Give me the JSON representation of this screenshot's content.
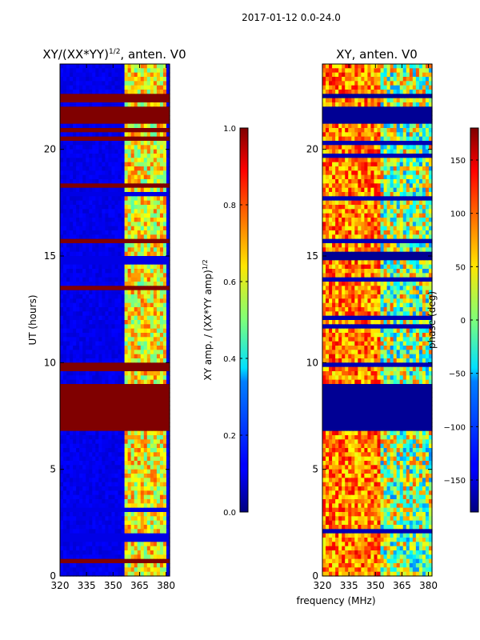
{
  "figure": {
    "suptitle": "2017-01-12 0.0-24.0",
    "xlabel": "frequency (MHz)"
  },
  "chart_data": [
    {
      "type": "heatmap",
      "title": "XY/(XX*YY)^1/2, anten. V0",
      "title_main": "XY/(XX*YY)",
      "title_sup": "1/2",
      "title_tail": ", anten. V0",
      "xlabel": "frequency (MHz)",
      "ylabel": "UT (hours)",
      "xlim": [
        320,
        382
      ],
      "ylim": [
        0,
        24
      ],
      "xticks": [
        320,
        335,
        350,
        365,
        380
      ],
      "yticks": [
        0,
        5,
        10,
        15,
        20
      ],
      "colorbar": {
        "label": "XY amp. / (XX*YY amp)^1/2",
        "label_main": "XY amp. / (XX*YY amp)",
        "label_sup": "1/2",
        "range": [
          0.0,
          1.0
        ],
        "ticks": [
          "0.0",
          "0.2",
          "0.4",
          "0.6",
          "0.8",
          "1.0"
        ],
        "colormap": "jet"
      },
      "flagged_bands_hours": [
        [
          6.8,
          9.0
        ],
        [
          21.3,
          22.0
        ],
        [
          22.3,
          22.6
        ],
        [
          0.55,
          0.8
        ],
        [
          13.4,
          13.6
        ],
        [
          15.6,
          15.75
        ],
        [
          9.7,
          9.9
        ],
        [
          18.2,
          18.3
        ],
        [
          20.4,
          20.55
        ],
        [
          20.85,
          21.0
        ]
      ],
      "feature_notes": "low amplitude (~0.05) below ~355 MHz; high amplitude (~0.5-0.8) between ~358 and 380 MHz"
    },
    {
      "type": "heatmap",
      "title": "XY, anten. V0",
      "xlabel": "frequency (MHz)",
      "ylabel": "",
      "xlim": [
        320,
        382
      ],
      "ylim": [
        0,
        24
      ],
      "xticks": [
        320,
        335,
        350,
        365,
        380
      ],
      "yticks": [
        0,
        5,
        10,
        15,
        20
      ],
      "colorbar": {
        "label": "phase (deg)",
        "range": [
          -180,
          180
        ],
        "ticks": [
          "−150",
          "−100",
          "−50",
          "0",
          "50",
          "100",
          "150"
        ],
        "colormap": "jet"
      },
      "flagged_bands_hours": [
        [
          6.8,
          9.0
        ],
        [
          21.3,
          22.0
        ],
        [
          14.9,
          15.1
        ],
        [
          22.4,
          22.6
        ]
      ],
      "feature_notes": "phase mostly positive (~50-150 deg) at lower frequencies, mixed near 355-380 MHz"
    }
  ]
}
